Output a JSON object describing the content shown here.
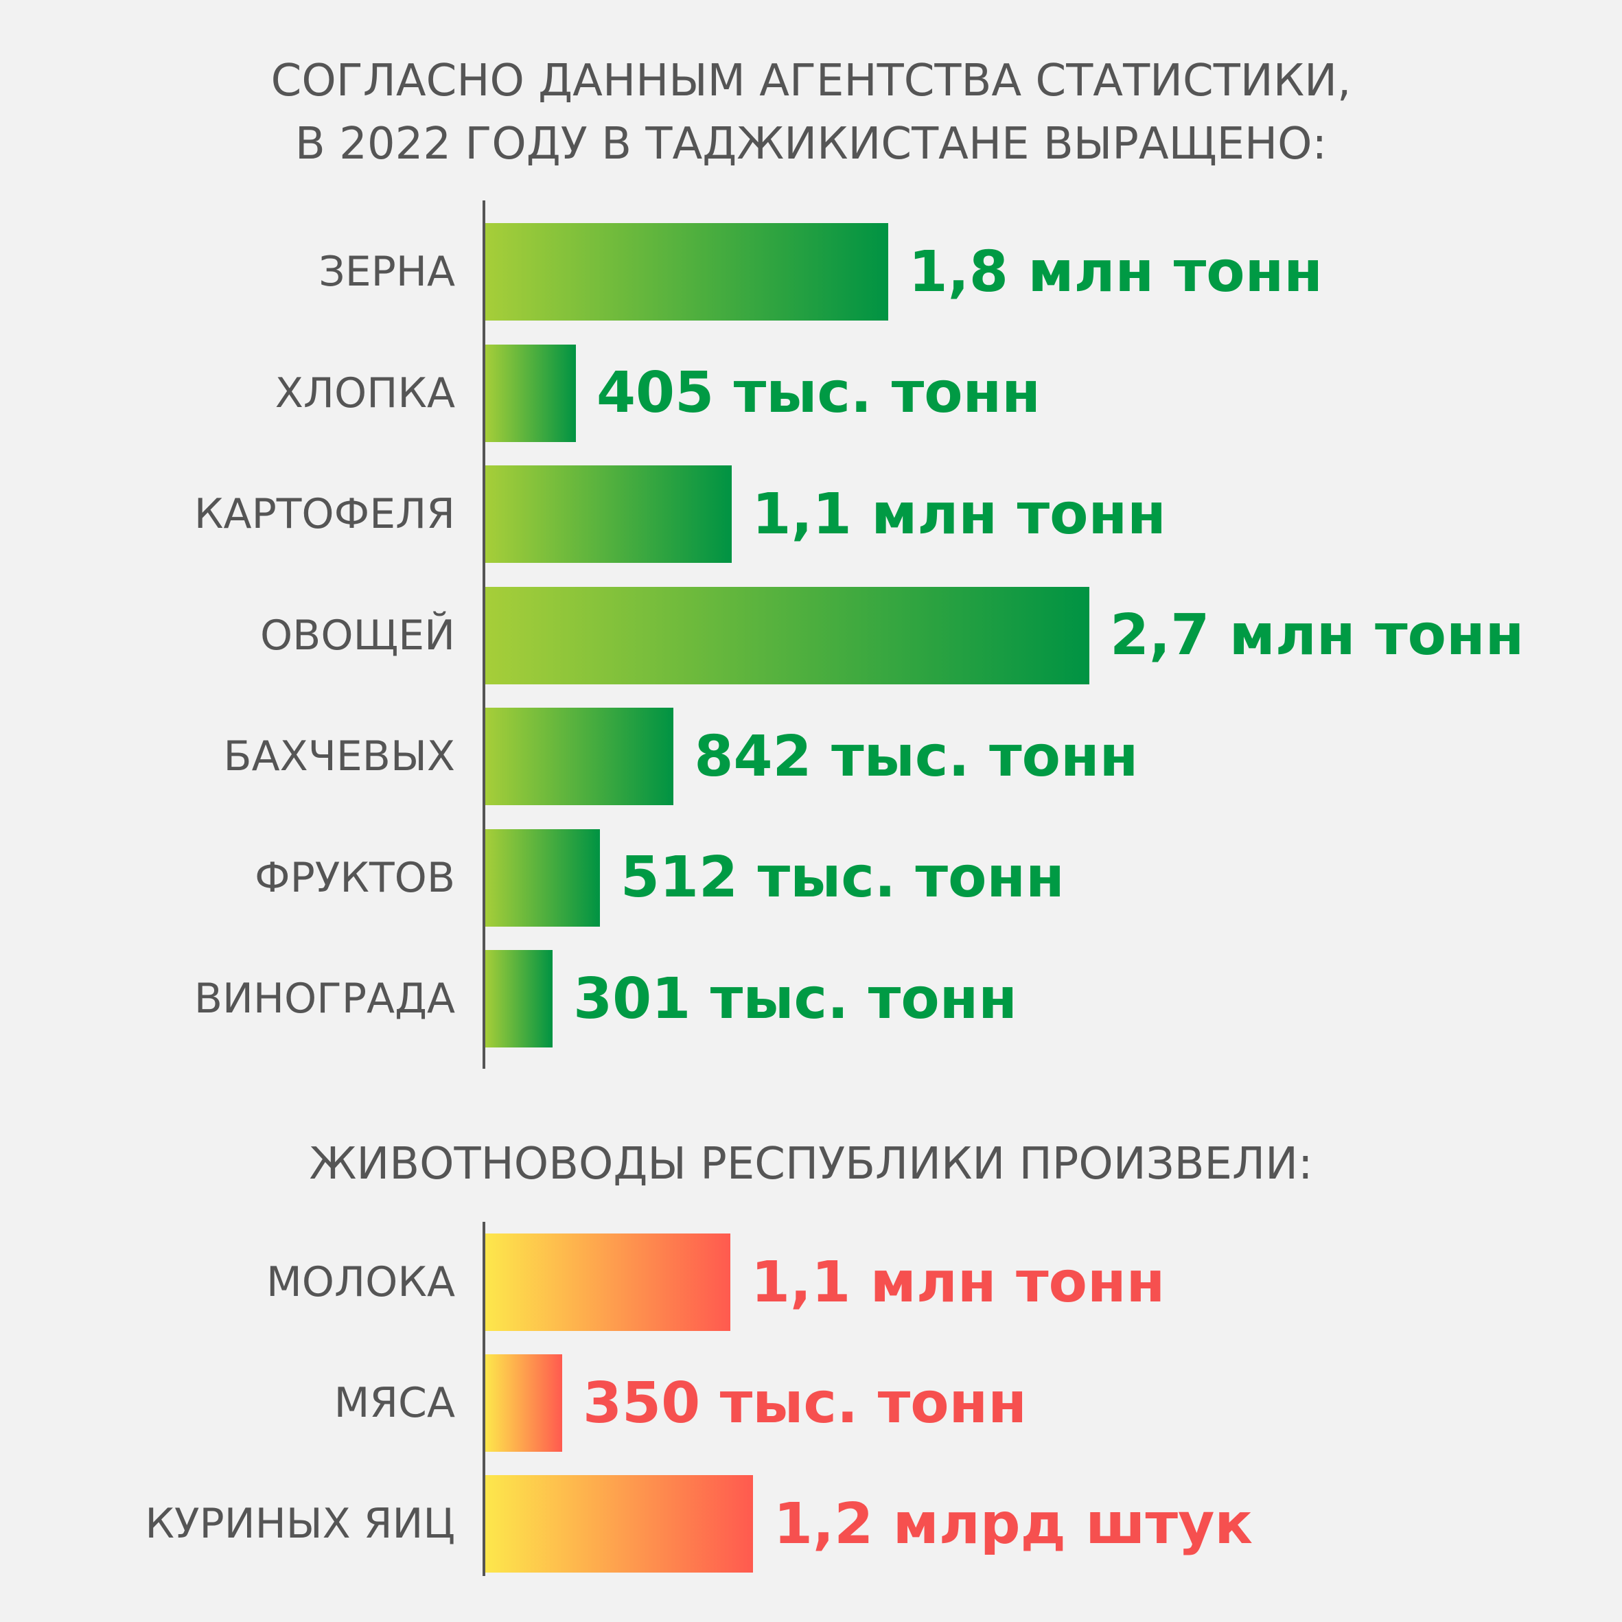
{
  "colors": {
    "text": "#555555",
    "crop_gradient": [
      "#a6ce39",
      "#009343"
    ],
    "crop_value": "#009a44",
    "livestock_gradient": [
      "#fde74c",
      "#ff5a4f"
    ],
    "livestock_value": "#f6504f",
    "background": "#f2f2f2"
  },
  "chart_data": [
    {
      "type": "bar",
      "orientation": "horizontal",
      "title": [
        "СОГЛАСНО ДАННЫМ АГЕНТСТВА СТАТИСТИКИ,",
        "В 2022 ГОДУ В ТАДЖИКИСТАНЕ ВЫРАЩЕНО:"
      ],
      "unit": "тыс. тонн",
      "categories": [
        "ЗЕРНА",
        "ХЛОПКА",
        "КАРТОФЕЛЯ",
        "ОВОЩЕЙ",
        "БАХЧЕВЫХ",
        "ФРУКТОВ",
        "ВИНОГРАДА"
      ],
      "values": [
        1800,
        405,
        1100,
        2700,
        842,
        512,
        301
      ],
      "value_labels": [
        "1,8 млн тонн",
        "405 тыс. тонн",
        "1,1 млн тонн",
        "2,7 млн тонн",
        "842 тыс. тонн",
        "512 тыс. тонн",
        "301 тыс. тонн"
      ],
      "xlim": [
        0,
        2700
      ],
      "grid": false
    },
    {
      "type": "bar",
      "orientation": "horizontal",
      "title": "ЖИВОТНОВОДЫ РЕСПУБЛИКИ ПРОИЗВЕЛИ:",
      "categories": [
        "МОЛОКА",
        "МЯСА",
        "КУРИНЫХ ЯИЦ"
      ],
      "values": [
        1.1,
        0.35,
        1.2
      ],
      "value_labels": [
        "1,1 млн тонн",
        "350 тыс. тонн",
        "1,2 млрд штук"
      ],
      "grid": false
    }
  ]
}
